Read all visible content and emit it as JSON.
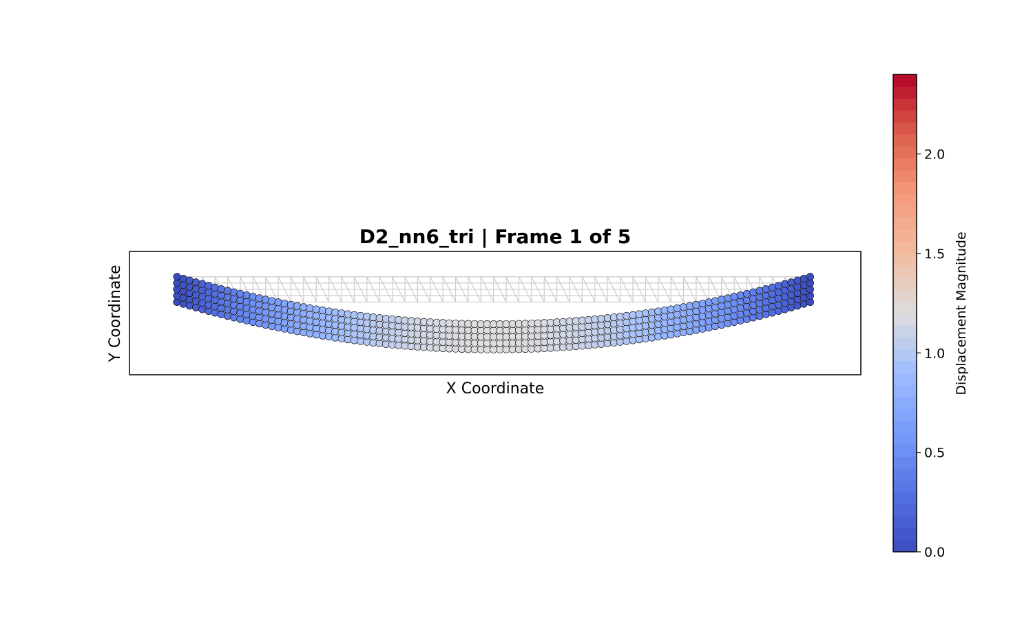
{
  "chart_data": {
    "type": "scatter",
    "title": "D2_nn6_tri  |  Frame 1 of 5",
    "xlabel": "X Coordinate",
    "ylabel": "Y Coordinate",
    "x_ticks_visible": false,
    "y_ticks_visible": false,
    "grid": false,
    "colormap": "coolwarm",
    "colorbar": {
      "label": "Displacement Magnitude",
      "range": [
        0.0,
        2.4
      ],
      "ticks": [
        0.0,
        0.5,
        1.0,
        1.5,
        2.0
      ],
      "tick_labels": [
        "0.0",
        "0.5",
        "1.0",
        "1.5",
        "2.0"
      ],
      "placement": "right"
    },
    "mesh": {
      "element_type": "6-node triangle",
      "columns": 101,
      "rows": 5,
      "x_range": [
        0,
        100
      ],
      "y_range": [
        0,
        4
      ],
      "undeformed_mesh_color": "#cccccc"
    },
    "deformation": {
      "shape": "parabolic sag, zero at both ends",
      "max_deflection_at_center": 7.5,
      "max_displacement_magnitude_shown": 1.2
    },
    "axis_limits": {
      "xlim": [
        -7.5,
        108
      ],
      "ylim": [
        -11.5,
        8
      ]
    },
    "colors": {
      "low": "#3b4cc0",
      "mid": "#dddddd",
      "high": "#b40426",
      "point_edge": "#000000",
      "axes_frame": "#000000"
    }
  }
}
